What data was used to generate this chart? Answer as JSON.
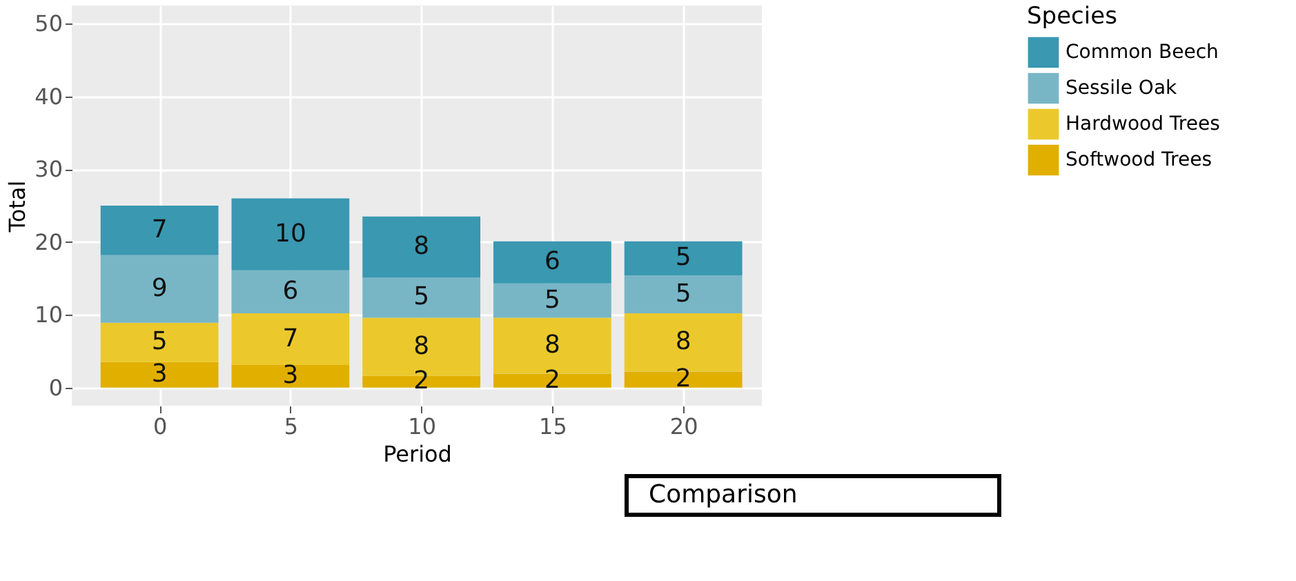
{
  "chart_data": {
    "type": "bar",
    "stacked": true,
    "xlabel": "Period",
    "ylabel": "Total",
    "legend_title": "Species",
    "x": [
      0,
      5,
      10,
      15,
      20
    ],
    "xlim": [
      -3.35,
      23.0
    ],
    "xticks": [
      0,
      5,
      10,
      15,
      20
    ],
    "ylim": [
      -2.5,
      52.5
    ],
    "yticks": [
      0,
      10,
      20,
      30,
      40,
      50
    ],
    "grid": true,
    "legend": "right",
    "series": [
      {
        "name": "Softwood Trees",
        "color": "#e1af00",
        "values": [
          3.5,
          3.1,
          1.6,
          1.9,
          2.2
        ],
        "value_labels": [
          "3",
          "3",
          "2",
          "2",
          "2"
        ]
      },
      {
        "name": "Hardwood Trees",
        "color": "#ebc92c",
        "values": [
          5.4,
          7.1,
          8.0,
          7.7,
          8.0
        ],
        "value_labels": [
          "5",
          "7",
          "8",
          "8",
          "8"
        ]
      },
      {
        "name": "Sessile Oak",
        "color": "#78b6c6",
        "values": [
          9.3,
          5.9,
          5.5,
          4.7,
          5.2
        ],
        "value_labels": [
          "9",
          "6",
          "5",
          "5",
          "5"
        ]
      },
      {
        "name": "Common Beech",
        "color": "#3a98b1",
        "values": [
          6.8,
          9.9,
          8.4,
          5.8,
          4.7
        ],
        "value_labels": [
          "7",
          "10",
          "8",
          "6",
          "5"
        ]
      }
    ],
    "annotations": [
      "Comparison"
    ]
  }
}
